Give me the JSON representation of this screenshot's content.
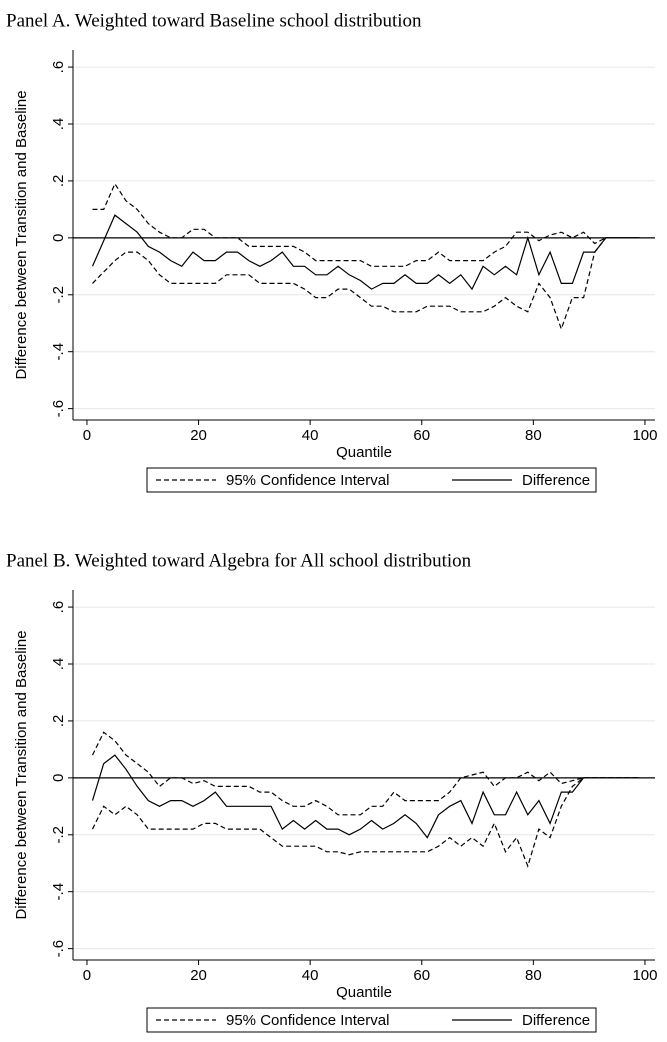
{
  "chart_data": [
    {
      "type": "line",
      "title": "Panel A. Weighted toward Baseline school distribution",
      "x_label": "Quantile",
      "y_label": "Difference between Transition and Baseline",
      "x": [
        1,
        3,
        5,
        7,
        9,
        11,
        13,
        15,
        17,
        19,
        21,
        23,
        25,
        27,
        29,
        31,
        33,
        35,
        37,
        39,
        41,
        43,
        45,
        47,
        49,
        51,
        53,
        55,
        57,
        59,
        61,
        63,
        65,
        67,
        69,
        71,
        73,
        75,
        77,
        79,
        81,
        83,
        85,
        87,
        89,
        91,
        93,
        95,
        97,
        99
      ],
      "series": [
        {
          "name": "95% Confidence Interval",
          "color": "#000000",
          "style": "dashed",
          "upper": [
            0.1,
            0.1,
            0.19,
            0.13,
            0.1,
            0.05,
            0.02,
            0,
            0,
            0.03,
            0.03,
            0,
            0,
            0,
            -0.03,
            -0.03,
            -0.03,
            -0.03,
            -0.03,
            -0.05,
            -0.08,
            -0.08,
            -0.08,
            -0.08,
            -0.08,
            -0.1,
            -0.1,
            -0.1,
            -0.1,
            -0.08,
            -0.08,
            -0.05,
            -0.08,
            -0.08,
            -0.08,
            -0.08,
            -0.05,
            -0.03,
            0.02,
            0.02,
            -0.01,
            0.01,
            0.02,
            0,
            0.02,
            -0.02,
            0,
            0,
            0,
            0
          ],
          "lower": [
            -0.16,
            -0.12,
            -0.08,
            -0.05,
            -0.05,
            -0.08,
            -0.13,
            -0.16,
            -0.16,
            -0.16,
            -0.16,
            -0.16,
            -0.13,
            -0.13,
            -0.13,
            -0.16,
            -0.16,
            -0.16,
            -0.16,
            -0.18,
            -0.21,
            -0.21,
            -0.18,
            -0.18,
            -0.21,
            -0.24,
            -0.24,
            -0.26,
            -0.26,
            -0.26,
            -0.24,
            -0.24,
            -0.24,
            -0.26,
            -0.26,
            -0.26,
            -0.24,
            -0.21,
            -0.24,
            -0.26,
            -0.16,
            -0.21,
            -0.32,
            -0.21,
            -0.21,
            -0.05,
            0,
            0,
            0,
            0
          ]
        },
        {
          "name": "Difference",
          "color": "#000000",
          "style": "solid",
          "values": [
            -0.1,
            -0.01,
            0.08,
            0.05,
            0.02,
            -0.03,
            -0.05,
            -0.08,
            -0.1,
            -0.05,
            -0.08,
            -0.08,
            -0.05,
            -0.05,
            -0.08,
            -0.1,
            -0.08,
            -0.05,
            -0.1,
            -0.1,
            -0.13,
            -0.13,
            -0.1,
            -0.13,
            -0.15,
            -0.18,
            -0.16,
            -0.16,
            -0.13,
            -0.16,
            -0.16,
            -0.13,
            -0.16,
            -0.13,
            -0.18,
            -0.1,
            -0.13,
            -0.1,
            -0.13,
            0,
            -0.13,
            -0.05,
            -0.16,
            -0.16,
            -0.05,
            -0.05,
            0,
            0,
            0,
            0
          ]
        }
      ],
      "xlim": [
        -2.5,
        101.8
      ],
      "xticks": [
        0,
        20,
        40,
        60,
        80,
        100
      ],
      "ylim": [
        -0.64,
        0.66
      ],
      "yticks": [
        {
          "value": -0.6,
          "label": "-.6"
        },
        {
          "value": -0.4,
          "label": "-.4"
        },
        {
          "value": -0.2,
          "label": "-.2"
        },
        0,
        {
          "value": 0.2,
          "label": ".2"
        },
        {
          "value": 0.4,
          "label": ".4"
        },
        {
          "value": 0.6,
          "label": ".6"
        }
      ],
      "grid": true,
      "reference_line": 0,
      "legend": "bottom"
    },
    {
      "type": "line",
      "title": "Panel B. Weighted toward Algebra for All school distribution",
      "x_label": "Quantile",
      "y_label": "Difference between Transition and Baseline",
      "x": [
        1,
        3,
        5,
        7,
        9,
        11,
        13,
        15,
        17,
        19,
        21,
        23,
        25,
        27,
        29,
        31,
        33,
        35,
        37,
        39,
        41,
        43,
        45,
        47,
        49,
        51,
        53,
        55,
        57,
        59,
        61,
        63,
        65,
        67,
        69,
        71,
        73,
        75,
        77,
        79,
        81,
        83,
        85,
        87,
        89,
        91,
        93,
        95,
        97,
        99
      ],
      "series": [
        {
          "name": "95% Confidence Interval",
          "color": "#000000",
          "style": "dashed",
          "upper": [
            0.08,
            0.16,
            0.13,
            0.08,
            0.05,
            0.02,
            -0.03,
            0,
            0,
            -0.02,
            -0.01,
            -0.03,
            -0.03,
            -0.03,
            -0.03,
            -0.05,
            -0.05,
            -0.08,
            -0.1,
            -0.1,
            -0.08,
            -0.1,
            -0.13,
            -0.13,
            -0.13,
            -0.1,
            -0.1,
            -0.05,
            -0.08,
            -0.08,
            -0.08,
            -0.08,
            -0.05,
            0,
            0.01,
            0.02,
            -0.03,
            0,
            0,
            0.02,
            -0.01,
            0.02,
            -0.02,
            -0.01,
            0,
            0,
            0,
            0,
            0,
            0
          ],
          "lower": [
            -0.18,
            -0.1,
            -0.13,
            -0.1,
            -0.13,
            -0.18,
            -0.18,
            -0.18,
            -0.18,
            -0.18,
            -0.16,
            -0.16,
            -0.18,
            -0.18,
            -0.18,
            -0.18,
            -0.21,
            -0.24,
            -0.24,
            -0.24,
            -0.24,
            -0.26,
            -0.26,
            -0.27,
            -0.26,
            -0.26,
            -0.26,
            -0.26,
            -0.26,
            -0.26,
            -0.26,
            -0.24,
            -0.21,
            -0.24,
            -0.21,
            -0.24,
            -0.16,
            -0.26,
            -0.21,
            -0.31,
            -0.18,
            -0.21,
            -0.1,
            -0.03,
            0,
            0,
            0,
            0,
            0,
            0
          ]
        },
        {
          "name": "Difference",
          "color": "#000000",
          "style": "solid",
          "values": [
            -0.08,
            0.05,
            0.08,
            0.03,
            -0.03,
            -0.08,
            -0.1,
            -0.08,
            -0.08,
            -0.1,
            -0.08,
            -0.05,
            -0.1,
            -0.1,
            -0.1,
            -0.1,
            -0.1,
            -0.18,
            -0.15,
            -0.18,
            -0.15,
            -0.18,
            -0.18,
            -0.2,
            -0.18,
            -0.15,
            -0.18,
            -0.16,
            -0.13,
            -0.16,
            -0.21,
            -0.13,
            -0.1,
            -0.08,
            -0.16,
            -0.05,
            -0.13,
            -0.13,
            -0.05,
            -0.13,
            -0.08,
            -0.16,
            -0.05,
            -0.05,
            0,
            0,
            0,
            0,
            0,
            0
          ]
        }
      ],
      "xlim": [
        -2.5,
        101.8
      ],
      "xticks": [
        0,
        20,
        40,
        60,
        80,
        100
      ],
      "ylim": [
        -0.64,
        0.66
      ],
      "yticks": [
        {
          "value": -0.6,
          "label": "-.6"
        },
        {
          "value": -0.4,
          "label": "-.4"
        },
        {
          "value": -0.2,
          "label": "-.2"
        },
        0,
        {
          "value": 0.2,
          "label": ".2"
        },
        {
          "value": 0.4,
          "label": ".4"
        },
        {
          "value": 0.6,
          "label": ".6"
        }
      ],
      "grid": true,
      "reference_line": 0,
      "legend": "bottom"
    }
  ]
}
